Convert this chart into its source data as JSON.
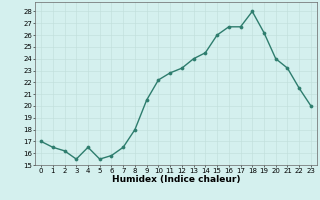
{
  "x": [
    0,
    1,
    2,
    3,
    4,
    5,
    6,
    7,
    8,
    9,
    10,
    11,
    12,
    13,
    14,
    15,
    16,
    17,
    18,
    19,
    20,
    21,
    22,
    23
  ],
  "y": [
    17.0,
    16.5,
    16.2,
    15.5,
    16.5,
    15.5,
    15.8,
    16.5,
    18.0,
    20.5,
    22.2,
    22.8,
    23.2,
    24.0,
    24.5,
    26.0,
    26.7,
    26.7,
    28.0,
    26.2,
    24.0,
    23.2,
    21.5,
    20.0
  ],
  "line_color": "#2e7d6e",
  "marker_color": "#2e7d6e",
  "bg_color": "#d4f0ee",
  "grid_color": "#c0deda",
  "xlabel": "Humidex (Indice chaleur)",
  "xlim": [
    -0.5,
    23.5
  ],
  "ylim": [
    15,
    28.8
  ],
  "yticks": [
    15,
    16,
    17,
    18,
    19,
    20,
    21,
    22,
    23,
    24,
    25,
    26,
    27,
    28
  ],
  "xticks": [
    0,
    1,
    2,
    3,
    4,
    5,
    6,
    7,
    8,
    9,
    10,
    11,
    12,
    13,
    14,
    15,
    16,
    17,
    18,
    19,
    20,
    21,
    22,
    23
  ],
  "tick_label_fontsize": 5.0,
  "xlabel_fontsize": 6.5,
  "line_width": 1.0,
  "marker_size": 2.2
}
